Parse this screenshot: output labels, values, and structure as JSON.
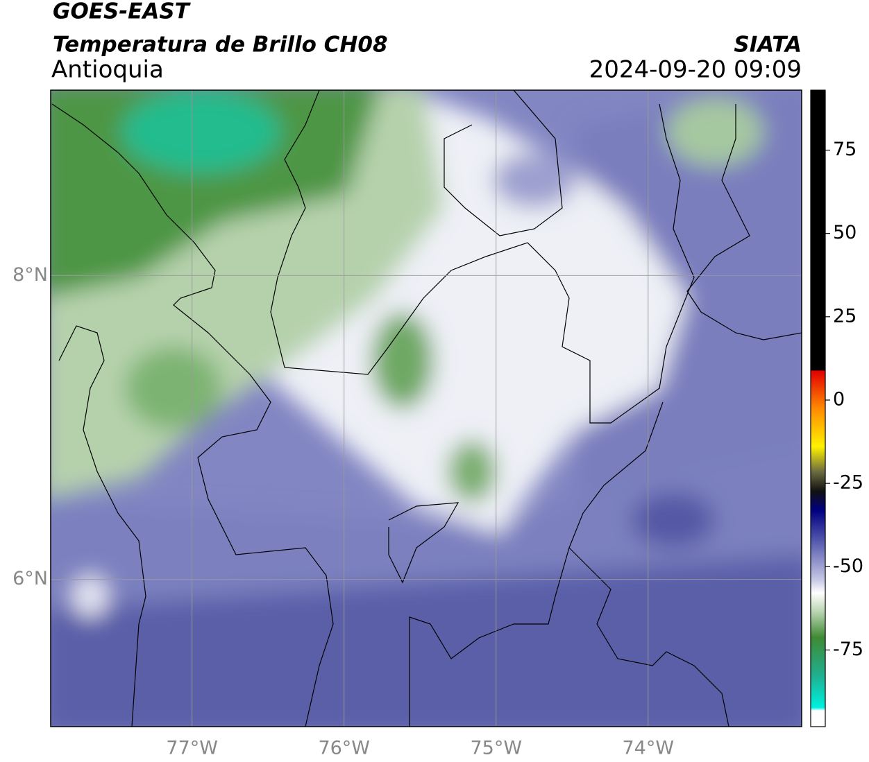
{
  "header": {
    "title": "GOES-EAST",
    "subtitle": "Temperatura de Brillo CH08",
    "region": "Antioquia",
    "source": "SIATA",
    "datetime": "2024-09-20 09:09"
  },
  "map": {
    "xlim": [
      -77.93,
      -72.99
    ],
    "ylim": [
      5.03,
      9.22
    ],
    "xticks": [
      {
        "value": -77,
        "label": "77°W"
      },
      {
        "value": -76,
        "label": "76°W"
      },
      {
        "value": -75,
        "label": "75°W"
      },
      {
        "value": -74,
        "label": "74°W"
      }
    ],
    "yticks": [
      {
        "value": 6,
        "label": "6°N"
      },
      {
        "value": 8,
        "label": "8°N"
      }
    ]
  },
  "colorbar": {
    "lim": [
      -98,
      93
    ],
    "ticks": [
      75,
      50,
      25,
      0,
      -25,
      -50,
      -75
    ]
  }
}
